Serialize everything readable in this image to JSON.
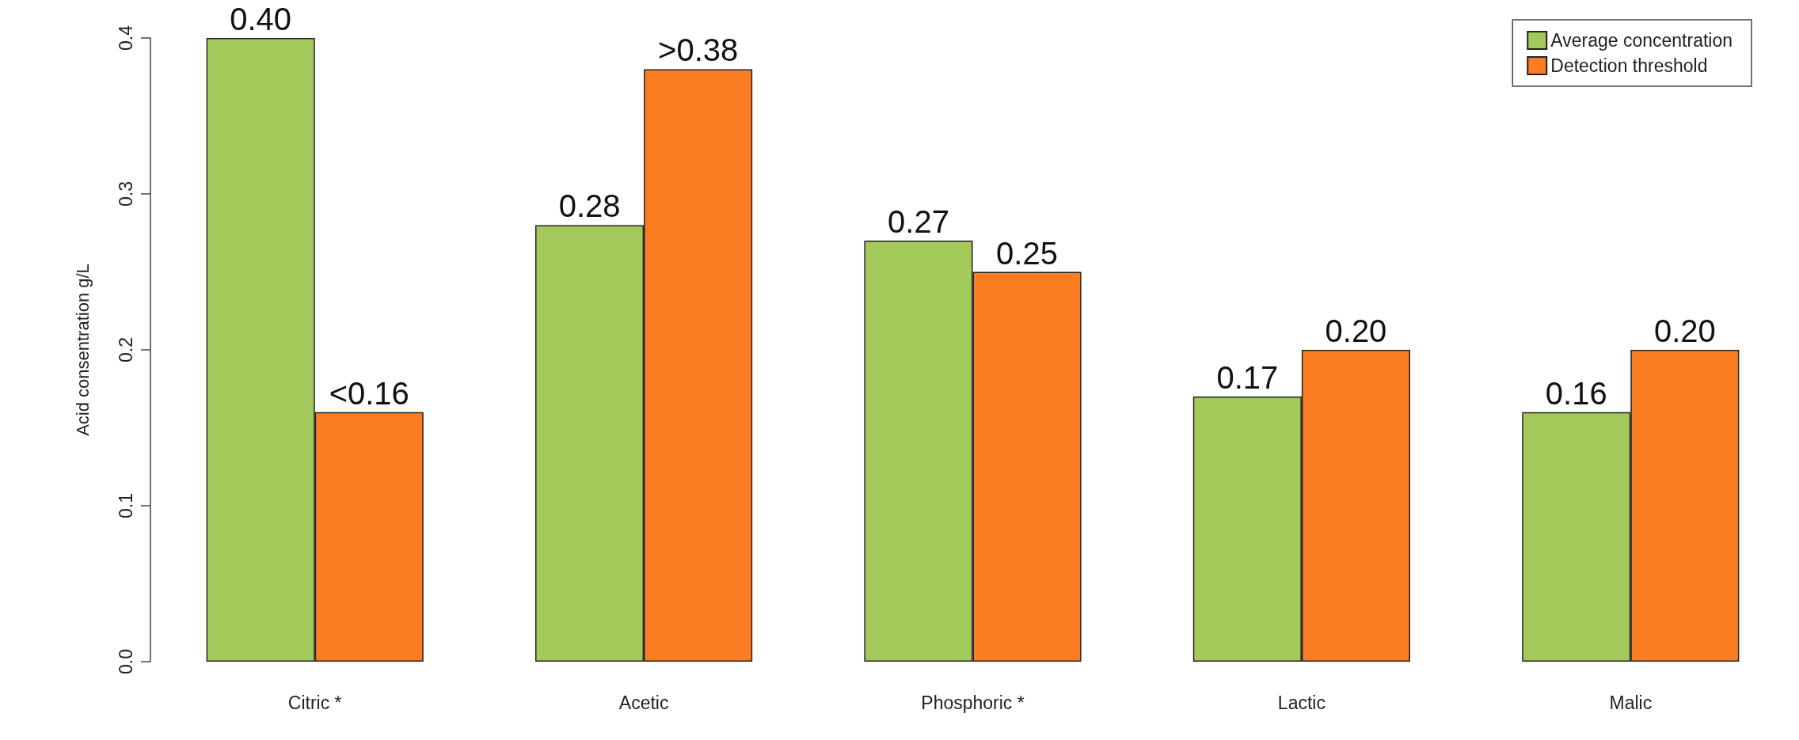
{
  "chart_data": {
    "type": "bar",
    "ylabel": "Acid consentration g/L",
    "categories": [
      "Citric *",
      "Acetic",
      "Phosphoric *",
      "Lactic",
      "Malic"
    ],
    "series": [
      {
        "name": "Average concentration",
        "color": "#a2c95a",
        "values": [
          0.4,
          0.28,
          0.27,
          0.17,
          0.16
        ],
        "value_labels": [
          "0.40",
          "0.28",
          "0.27",
          "0.17",
          "0.16"
        ]
      },
      {
        "name": "Detection threshold",
        "color": "#fb7d22",
        "values": [
          0.16,
          0.38,
          0.25,
          0.2,
          0.2
        ],
        "value_labels": [
          "<0.16",
          ">0.38",
          "0.25",
          "0.20",
          "0.20"
        ]
      }
    ],
    "ylim": [
      0,
      0.4
    ],
    "yticks": [
      {
        "value": 0,
        "label": "0.0"
      },
      0.1,
      0.2,
      0.3,
      0.4
    ],
    "grid": false,
    "legend": "top right"
  }
}
